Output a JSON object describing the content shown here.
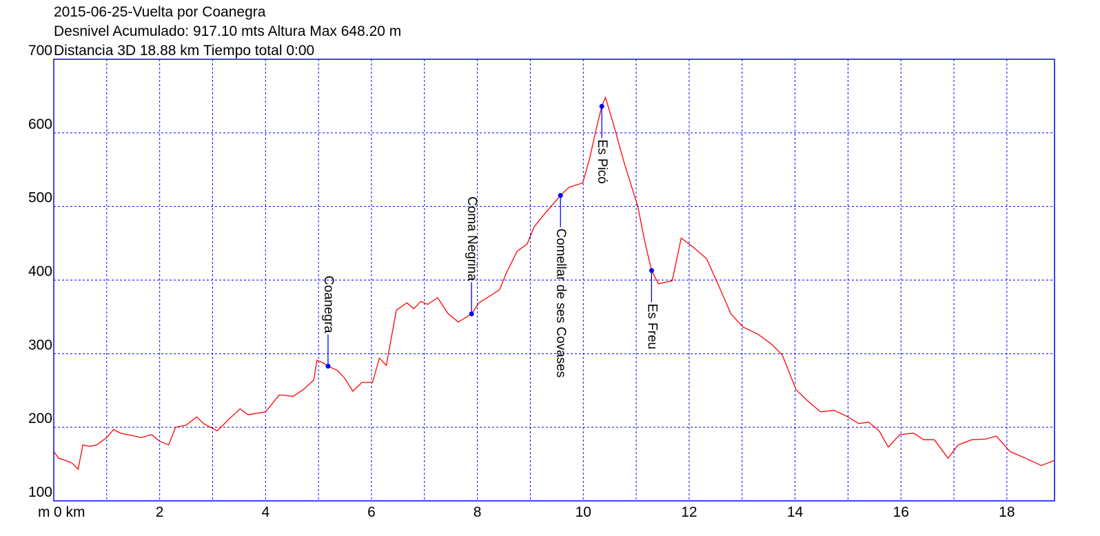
{
  "chart_data": {
    "type": "line",
    "title": "2015-06-25-Vuelta por Coanegra",
    "subtitle": "Desnivel Acumulado: 917.10 mts  Altura Max 648.20 m",
    "subtitle2": "Distancia 3D 18.88 km  Tiempo total 0:00",
    "ylabel": "m",
    "xlim": [
      0,
      18.9
    ],
    "ylim": [
      100,
      700
    ],
    "xticks": [
      {
        "value": 0,
        "label": "0 km"
      },
      2,
      4,
      6,
      8,
      10,
      12,
      14,
      16,
      18
    ],
    "xgrid_minor": [
      1,
      3,
      5,
      7,
      9,
      11,
      13,
      15,
      17
    ],
    "yticks": [
      100,
      200,
      300,
      400,
      500,
      600,
      700
    ],
    "grid": true,
    "grid_color": "#0000ff",
    "series": [
      {
        "color": "#ff0000",
        "x": [
          0,
          0.09,
          0.22,
          0.35,
          0.46,
          0.55,
          0.68,
          0.81,
          1.0,
          1.13,
          1.26,
          1.46,
          1.65,
          1.85,
          2.0,
          2.17,
          2.3,
          2.5,
          2.7,
          2.83,
          3.09,
          3.28,
          3.52,
          3.67,
          4.0,
          4.26,
          4.52,
          4.71,
          4.91,
          4.97,
          5.1,
          5.18,
          5.36,
          5.49,
          5.65,
          5.82,
          6.02,
          6.15,
          6.28,
          6.47,
          6.67,
          6.8,
          6.93,
          7.06,
          7.25,
          7.45,
          7.64,
          7.89,
          8.03,
          8.23,
          8.42,
          8.55,
          8.75,
          8.94,
          9.07,
          9.27,
          9.57,
          9.73,
          9.99,
          10.12,
          10.25,
          10.35,
          10.42,
          10.57,
          10.77,
          11.03,
          11.16,
          11.29,
          11.42,
          11.68,
          11.85,
          12.07,
          12.33,
          12.59,
          12.79,
          13.02,
          13.31,
          13.57,
          13.76,
          14.02,
          14.22,
          14.48,
          14.74,
          15.0,
          15.2,
          15.39,
          15.59,
          15.76,
          15.98,
          16.24,
          16.43,
          16.63,
          16.89,
          17.08,
          17.34,
          17.6,
          17.8,
          18.06,
          18.32,
          18.65,
          18.9
        ],
        "values": [
          167,
          158,
          155,
          151,
          143,
          176,
          174,
          176,
          186,
          197,
          192,
          189,
          186,
          190,
          181,
          176,
          200,
          203,
          214,
          205,
          195,
          209,
          225,
          217,
          221,
          244,
          242,
          251,
          264,
          291,
          287,
          283,
          277,
          267,
          249,
          261,
          261,
          294,
          284,
          359,
          369,
          361,
          371,
          367,
          376,
          354,
          343,
          354,
          369,
          378,
          387,
          410,
          439,
          449,
          472,
          490,
          515,
          526,
          532,
          565,
          607,
          636,
          648,
          612,
          560,
          500,
          453,
          413,
          395,
          399,
          457,
          445,
          429,
          387,
          354,
          336,
          326,
          312,
          298,
          251,
          237,
          221,
          223,
          214,
          205,
          207,
          195,
          173,
          190,
          192,
          183,
          183,
          158,
          176,
          183,
          184,
          188,
          167,
          159,
          148,
          155
        ]
      }
    ],
    "waypoints": {
      "color": "#0000ff",
      "names": [
        "Coanegra",
        "Coma Negrina",
        "Comellar de ses Covases",
        "Es Picó",
        "Es Freu"
      ],
      "x": [
        5.18,
        7.89,
        9.57,
        10.35,
        11.29
      ],
      "values": [
        283,
        354,
        515,
        636,
        413
      ],
      "label_position": [
        "above",
        "above",
        "below",
        "below",
        "below"
      ]
    }
  }
}
